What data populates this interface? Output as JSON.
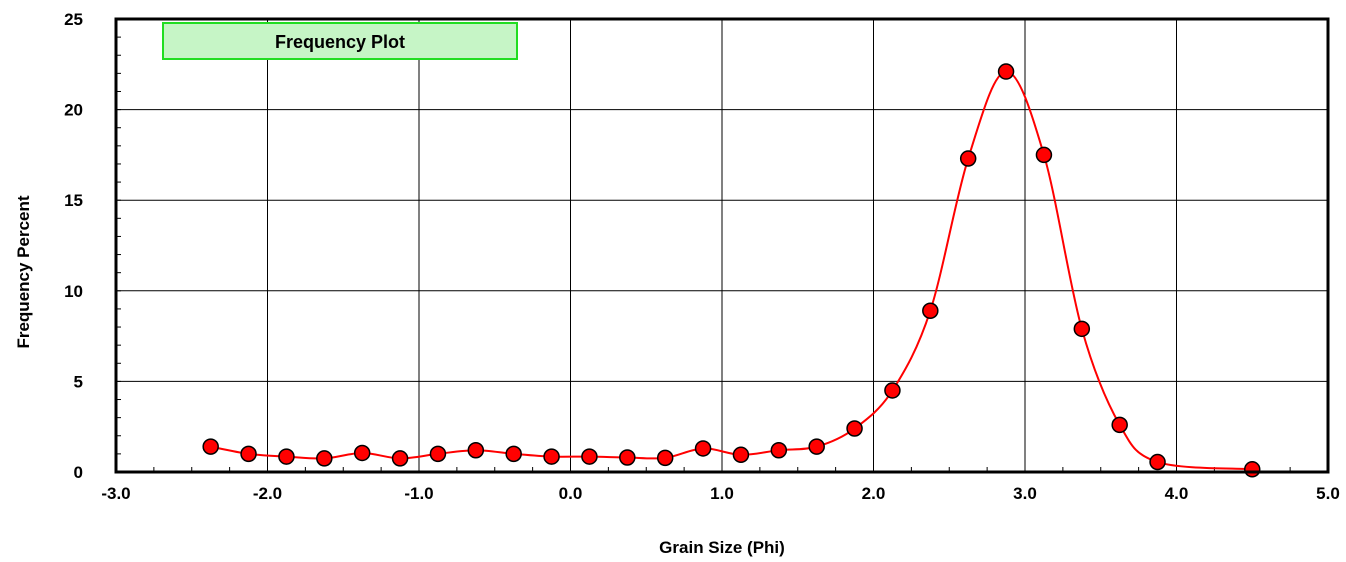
{
  "chart_data": {
    "type": "line",
    "title": "Frequency Plot",
    "xlabel": "Grain Size (Phi)",
    "ylabel": "Frequency Percent",
    "xlim": [
      -3.0,
      5.0
    ],
    "ylim": [
      0,
      25
    ],
    "x_ticks": [
      "-3.0",
      "-2.0",
      "-1.0",
      "0.0",
      "1.0",
      "2.0",
      "3.0",
      "4.0",
      "5.0"
    ],
    "y_ticks": [
      "0",
      "5",
      "10",
      "15",
      "20",
      "25"
    ],
    "grid": true,
    "series": [
      {
        "color": "#ff0000",
        "marker_color": "#ff0000",
        "x": [
          -2.375,
          -2.125,
          -1.875,
          -1.625,
          -1.375,
          -1.125,
          -0.875,
          -0.625,
          -0.375,
          -0.125,
          0.125,
          0.375,
          0.625,
          0.875,
          1.125,
          1.375,
          1.625,
          1.875,
          2.125,
          2.375,
          2.625,
          2.875,
          3.125,
          3.375,
          3.625,
          3.875,
          4.5
        ],
        "y": [
          1.4,
          1.0,
          0.85,
          0.75,
          1.05,
          0.75,
          1.0,
          1.2,
          1.0,
          0.85,
          0.85,
          0.8,
          0.78,
          1.3,
          0.95,
          1.2,
          1.4,
          2.4,
          4.5,
          8.9,
          17.3,
          22.1,
          17.5,
          7.9,
          2.6,
          0.55,
          0.15
        ]
      }
    ]
  }
}
